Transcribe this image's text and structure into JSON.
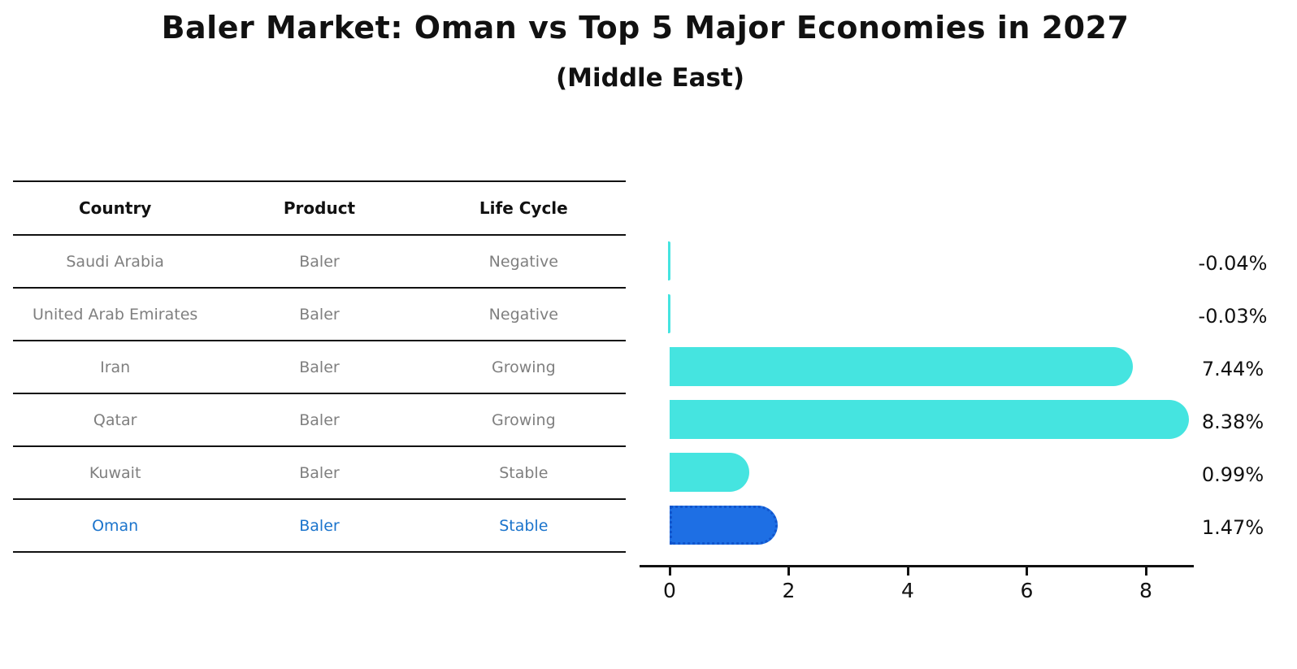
{
  "title": "Baler Market: Oman vs Top 5 Major Economies in 2027",
  "subtitle": "(Middle East)",
  "table": {
    "headers": [
      "Country",
      "Product",
      "Life Cycle"
    ],
    "rows": [
      {
        "country": "Saudi Arabia",
        "product": "Baler",
        "life_cycle": "Negative",
        "highlight": false
      },
      {
        "country": "United Arab Emirates",
        "product": "Baler",
        "life_cycle": "Negative",
        "highlight": false
      },
      {
        "country": "Iran",
        "product": "Baler",
        "life_cycle": "Growing",
        "highlight": false
      },
      {
        "country": "Qatar",
        "product": "Baler",
        "life_cycle": "Growing",
        "highlight": false
      },
      {
        "country": "Kuwait",
        "product": "Baler",
        "life_cycle": "Stable",
        "highlight": false
      },
      {
        "country": "Oman",
        "product": "Baler",
        "life_cycle": "Stable",
        "highlight": true
      }
    ]
  },
  "chart_data": {
    "type": "bar",
    "orientation": "horizontal",
    "categories": [
      "Saudi Arabia",
      "United Arab Emirates",
      "Iran",
      "Qatar",
      "Kuwait",
      "Oman"
    ],
    "values": [
      -0.04,
      -0.03,
      7.44,
      8.38,
      0.99,
      1.47
    ],
    "value_labels": [
      "-0.04%",
      "-0.03%",
      "7.44%",
      "8.38%",
      "0.99%",
      "1.47%"
    ],
    "x_ticks": [
      "0",
      "2",
      "4",
      "6",
      "8"
    ],
    "x_tick_values": [
      0,
      2,
      4,
      6,
      8
    ],
    "xlim": [
      -0.5,
      8.8
    ],
    "grid": false,
    "legend": "none",
    "highlight_index": 5,
    "title": "Baler Market: Oman vs Top 5 Major Economies in 2027",
    "subtitle": "(Middle East)"
  },
  "colors": {
    "bar": "#45E4E0",
    "highlight_bar": "#1E6FE4",
    "highlight_border": "#1155CC",
    "row_text": "#7F7F7F",
    "highlight_text": "#1B74CC",
    "axis": "#111111"
  }
}
